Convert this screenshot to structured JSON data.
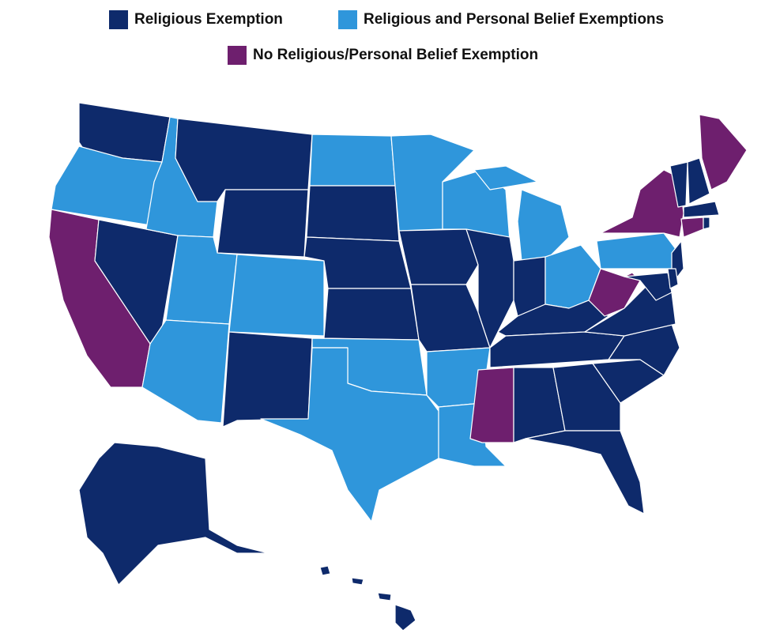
{
  "legend": {
    "items": [
      {
        "label": "Religious Exemption",
        "color": "#0e2a6b"
      },
      {
        "label": "Religious and Personal Belief Exemptions",
        "color": "#2f96db"
      },
      {
        "label": "No Religious/Personal Belief Exemption",
        "color": "#6e1f6e"
      }
    ]
  }
}
